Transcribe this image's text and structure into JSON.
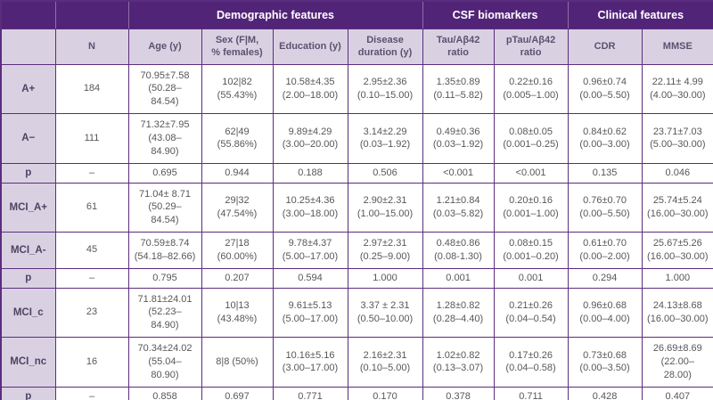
{
  "table": {
    "header_groups": [
      {
        "label": "",
        "span": 1
      },
      {
        "label": "",
        "span": 1
      },
      {
        "label": "Demographic features",
        "span": 4
      },
      {
        "label": "CSF biomarkers",
        "span": 2
      },
      {
        "label": "Clinical features",
        "span": 2
      }
    ],
    "columns": [
      "",
      "N",
      "Age (y)",
      "Sex (F|M,\n% females)",
      "Education (y)",
      "Disease\nduration (y)",
      "Tau/Aβ42\nratio",
      "pTau/Aβ42\nratio",
      "CDR",
      "MMSE"
    ],
    "rows": [
      {
        "label": "A+",
        "is_p_row": false,
        "cells": [
          "184",
          "70.95±7.58\n(50.28–\n84.54)",
          "102|82\n(55.43%)",
          "10.58±4.35\n(2.00–18.00)",
          "2.95±2.36\n(0.10–15.00)",
          "1.35±0.89\n(0.11–5.82)",
          "0.22±0.16\n(0.005–1.00)",
          "0.96±0.74\n(0.00–5.50)",
          "22.11± 4.99\n(4.00–30.00)"
        ]
      },
      {
        "label": "A−",
        "is_p_row": false,
        "cells": [
          "111",
          "71.32±7.95\n(43.08–\n84.90)",
          "62|49\n(55.86%)",
          "9.89±4.29\n(3.00–20.00)",
          "3.14±2.29\n(0.03–1.92)",
          "0.49±0.36\n(0.03–1.92)",
          "0.08±0.05\n(0.001–0.25)",
          "0.84±0.62\n(0.00–3.00)",
          "23.71±7.03\n(5.00–30.00)"
        ]
      },
      {
        "label": "p",
        "is_p_row": true,
        "cells": [
          "–",
          "0.695",
          "0.944",
          "0.188",
          "0.506",
          "<0.001",
          "<0.001",
          "0.135",
          "0.046"
        ]
      },
      {
        "label": "MCI_A+",
        "is_p_row": false,
        "cells": [
          "61",
          "71.04± 8.71\n(50.29–\n84.54)",
          "29|32\n(47.54%)",
          "10.25±4.36\n(3.00–18.00)",
          "2.90±2.31\n(1.00–15.00)",
          "1.21±0.84\n(0.03–5.82)",
          "0.20±0.16\n(0.001–1.00)",
          "0.76±0.70\n(0.00–5.50)",
          "25.74±5.24\n(16.00–30.00)"
        ]
      },
      {
        "label": "MCI_A-",
        "is_p_row": false,
        "cells": [
          "45",
          "70.59±8.74\n(54.18–82.66)",
          "27|18\n(60.00%)",
          "9.78±4.37\n(5.00–17.00)",
          "2.97±2.31\n(0.25–9.00)",
          "0.48±0.86\n(0.08-1.30)",
          "0.08±0.15\n(0.001–0.20)",
          "0.61±0.70\n(0.00–2.00)",
          "25.67±5.26\n(16.00–30.00)"
        ]
      },
      {
        "label": "p",
        "is_p_row": true,
        "cells": [
          "–",
          "0.795",
          "0.207",
          "0.594",
          "1.000",
          "0.001",
          "0.001",
          "0.294",
          "1.000"
        ]
      },
      {
        "label": "MCI_c",
        "is_p_row": false,
        "cells": [
          "23",
          "71.81±24.01\n(52.23–\n84.90)",
          "10|13\n(43.48%)",
          "9.61±5.13\n(5.00–17.00)",
          "3.37 ± 2.31\n(0.50–10.00)",
          "1.28±0.82\n(0.28–4.40)",
          "0.21±0.26\n(0.04–0.54)",
          "0.96±0.68\n(0.00–4.00)",
          "24.13±8.68\n(16.00–30.00)"
        ]
      },
      {
        "label": "MCI_nc",
        "is_p_row": false,
        "cells": [
          "16",
          "70.34±24.02\n(55.04–\n80.90)",
          "8|8 (50%)",
          "10.16±5.16\n(3.00–17.00)",
          "2.16±2.31\n(0.10–5.00)",
          "1.02±0.82\n(0.13–3.07)",
          "0.17±0.26\n(0.04–0.58)",
          "0.73±0.68\n(0.00–3.50)",
          "26.69±8.69\n(22.00–\n28.00)"
        ]
      },
      {
        "label": "p",
        "is_p_row": true,
        "cells": [
          "–",
          "0.858",
          "0.697",
          "0.771",
          "0.170",
          "0.378",
          "0.711",
          "0.428",
          "0.407"
        ]
      }
    ]
  },
  "colors": {
    "header_purple": "#522478",
    "subheader_lavender": "#d9d1e2",
    "border_purple": "#5b2d7e",
    "cell_text": "#57575a",
    "header_text": "#ffffff"
  }
}
